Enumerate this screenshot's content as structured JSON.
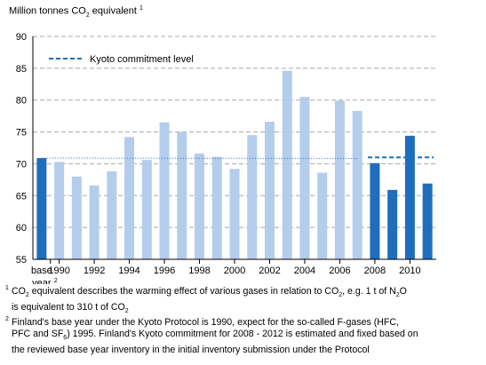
{
  "unit_label": {
    "text_before": "Million tonnes CO",
    "sub": "2",
    "text_after": " equivalent",
    "sup": "1"
  },
  "chart_data": {
    "type": "bar",
    "ylim": [
      55,
      90
    ],
    "yticks": [
      "55",
      "60",
      "65",
      "70",
      "75",
      "80",
      "85",
      "90"
    ],
    "grid": true,
    "categories": [
      "base year",
      "1990",
      "1991",
      "1992",
      "1993",
      "1994",
      "1995",
      "1996",
      "1997",
      "1998",
      "1999",
      "2000",
      "2001",
      "2002",
      "2003",
      "2004",
      "2005",
      "2006",
      "2007",
      "2008",
      "2009",
      "2010",
      "2011"
    ],
    "values": [
      70.9,
      70.3,
      68.0,
      66.6,
      68.8,
      74.2,
      70.6,
      76.5,
      75.0,
      71.6,
      71.1,
      69.2,
      74.5,
      76.6,
      84.6,
      80.5,
      68.6,
      79.9,
      78.3,
      70.1,
      65.9,
      74.4,
      66.9
    ],
    "xtick_labels": [
      "1990",
      "1992",
      "1994",
      "1996",
      "1998",
      "2000",
      "2002",
      "2004",
      "2006",
      "2008",
      "2010"
    ],
    "base_label_line1": "base",
    "base_label_line2": "year",
    "base_label_sup": "2",
    "reference_line": {
      "name": "Kyoto commitment level",
      "value": 71.0
    },
    "legend_position": "top-left",
    "colors": {
      "dark": "#1f6ebd",
      "light": "#b5cdec",
      "kyoto": "#1f6ebd",
      "grid": "#a8a8a8",
      "dotted": "#1f6ebd"
    }
  },
  "footnotes": [
    {
      "mark": "1",
      "t1": "CO",
      "t2": "2",
      "t3": " equivalent describes the warming effect of various gases in relation to CO",
      "t4": "2",
      "t5": ", e.g. 1 t of N",
      "t6": "2",
      "t7": "O",
      "line2a": "is equivalent to 310 t of CO",
      "line2b": "2"
    },
    {
      "mark": "2",
      "line1": "Finland's base year under the Kyoto Protocol is 1990, expect for the so-called F-gases (HFC,",
      "line2a": "PFC and SF",
      "line2b": "6",
      "line2c": ") 1995. Finland's Kyoto commitment for 2008 - 2012 is estimated and fixed based on",
      "line3": "the reviewed base year inventory in the initial inventory submission under the Protocol"
    }
  ]
}
